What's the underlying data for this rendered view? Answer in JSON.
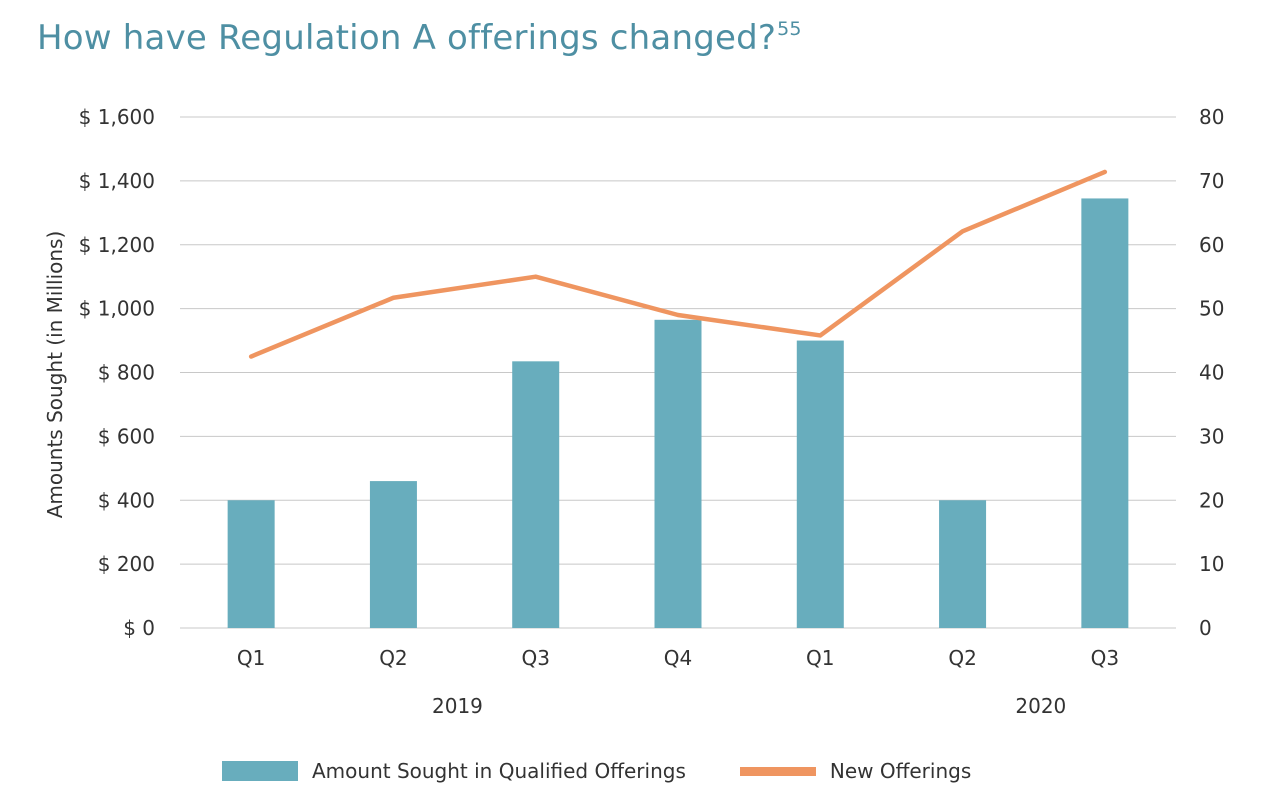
{
  "title": "How have Regulation A offerings changed?",
  "title_footnote": "55",
  "colors": {
    "bar": "#68adbd",
    "line": "#ef9560",
    "grid": "#c8c8c8",
    "title": "#4e8fa3"
  },
  "chart_data": {
    "type": "bar",
    "title": "How have Regulation A offerings changed?",
    "categories": [
      "Q1",
      "Q2",
      "Q3",
      "Q4",
      "Q1",
      "Q2",
      "Q3"
    ],
    "year_groups": [
      "2019",
      "2020"
    ],
    "series": [
      {
        "name": "Amount Sought in Qualified Offerings",
        "type": "bar",
        "axis": "left",
        "values": [
          400,
          460,
          835,
          965,
          900,
          400,
          1345
        ]
      },
      {
        "name": "New Offerings",
        "type": "line",
        "axis": "right",
        "values": [
          42.5,
          51.7,
          55,
          49,
          45.8,
          62.1,
          71.4
        ]
      }
    ],
    "ylabel": "Amounts Sought (in Millions)",
    "ylim": [
      0,
      1600
    ],
    "y_ticks": [
      "$ 0",
      "$ 200",
      "$ 400",
      "$ 600",
      "$ 800",
      "$ 1,000",
      "$ 1,200",
      "$ 1,400",
      "$ 1,600"
    ],
    "y2lim": [
      0,
      80
    ],
    "y2_ticks": [
      "0",
      "10",
      "20",
      "30",
      "40",
      "50",
      "60",
      "70",
      "80"
    ],
    "grid": true,
    "legend_position": "bottom"
  },
  "legend": {
    "bar_label": "Amount Sought in Qualified Offerings",
    "line_label": "New Offerings"
  }
}
